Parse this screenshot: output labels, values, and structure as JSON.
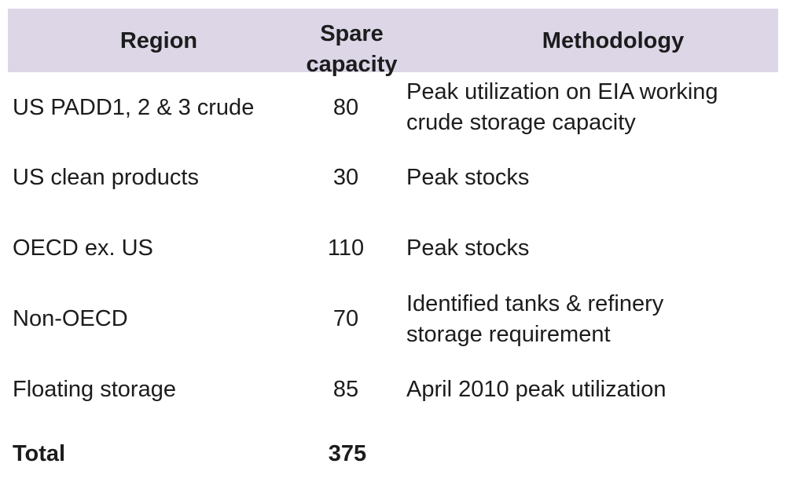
{
  "header": {
    "region": "Region",
    "spare_line1": "Spare",
    "spare_line2": "capacity",
    "methodology": "Methodology"
  },
  "rows": [
    {
      "region": "US PADD1, 2 & 3 crude",
      "value": "80",
      "method_line1": "Peak utilization on EIA working",
      "method_line2": "crude storage capacity"
    },
    {
      "region": "US clean products",
      "value": "30",
      "method_line1": "Peak stocks",
      "method_line2": ""
    },
    {
      "region": "OECD ex. US",
      "value": "110",
      "method_line1": "Peak stocks",
      "method_line2": ""
    },
    {
      "region": "Non-OECD",
      "value": "70",
      "method_line1": "Identified tanks & refinery",
      "method_line2": "storage requirement"
    },
    {
      "region": "Floating storage",
      "value": "85",
      "method_line1": "April 2010 peak utilization",
      "method_line2": ""
    }
  ],
  "total": {
    "label": "Total",
    "value": "375"
  },
  "colors": {
    "header_bg": "#dcd6e7"
  }
}
